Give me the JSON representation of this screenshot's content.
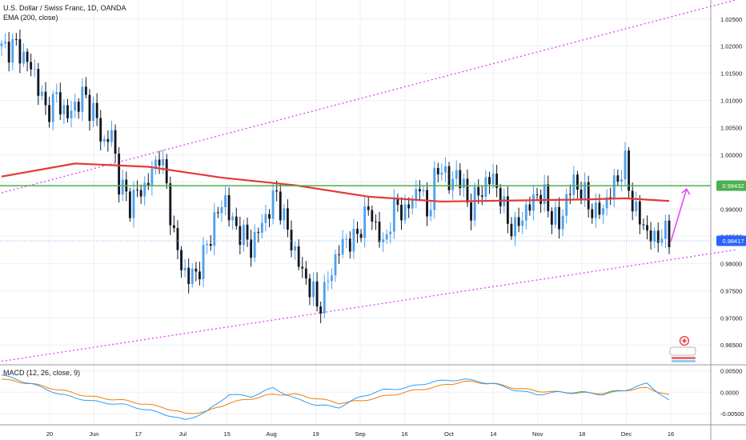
{
  "header": {
    "title": "U.S. Dollar / Swiss Franc, 1D, OANDA",
    "ema_label": "EMA (200, close)",
    "macd_label": "MACD (12, 26, close, 9)"
  },
  "colors": {
    "bull": "#4da1f0",
    "bear": "#131722",
    "ema": "#e53935",
    "horizontal": "#4caf50",
    "channel": "#e040fb",
    "arrow": "#e040fb",
    "macd": "#2f9df4",
    "signal": "#f57c00",
    "current_line": "#7cb9f4"
  },
  "price_axis": {
    "ticks": [
      "1.02500",
      "1.02000",
      "1.01500",
      "1.01000",
      "1.00500",
      "1.00000",
      "0.99500",
      "0.99000",
      "0.98500",
      "0.98000",
      "0.97500",
      "0.97000",
      "0.96500"
    ],
    "range": [
      0.9615,
      1.0285
    ]
  },
  "macd_axis": {
    "ticks": [
      "0.00500",
      "0.0000",
      "-0.00500"
    ],
    "range": [
      -0.0074,
      0.0062
    ]
  },
  "time_axis": {
    "labels": [
      "20",
      "Jun",
      "17",
      "Jul",
      "15",
      "Aug",
      "19",
      "Sep",
      "16",
      "Oct",
      "14",
      "Nov",
      "18",
      "Dec",
      "16"
    ]
  },
  "tags": {
    "horizontal_level": "0.99432",
    "last_price": "0.98417"
  },
  "chart_data": {
    "type": "candlestick",
    "symbol": "U.S. Dollar / Swiss Franc",
    "timeframe": "1D",
    "source": "OANDA",
    "indicators": [
      "EMA (200, close)",
      "MACD (12, 26, close, 9)"
    ],
    "close_path": [
      [
        0,
        1.0195
      ],
      [
        4,
        1.02
      ],
      [
        9,
        1.015
      ],
      [
        12,
        1.008
      ],
      [
        15,
        1.0105
      ],
      [
        18,
        1.007
      ],
      [
        22,
        1.011
      ],
      [
        25,
        1.008
      ],
      [
        28,
        1.002
      ],
      [
        30,
        1.004
      ],
      [
        32,
        0.995
      ],
      [
        35,
        0.991
      ],
      [
        37,
        0.993
      ],
      [
        39,
        0.994
      ],
      [
        41,
        0.9965
      ],
      [
        43,
        1.0005
      ],
      [
        45,
        0.994
      ],
      [
        47,
        0.985
      ],
      [
        49,
        0.9795
      ],
      [
        51,
        0.9775
      ],
      [
        53,
        0.978
      ],
      [
        56,
        0.983
      ],
      [
        58,
        0.988
      ],
      [
        61,
        0.992
      ],
      [
        63,
        0.987
      ],
      [
        65,
        0.986
      ],
      [
        68,
        0.983
      ],
      [
        70,
        0.986
      ],
      [
        73,
        0.99
      ],
      [
        75,
        0.993
      ],
      [
        77,
        0.988
      ],
      [
        79,
        0.984
      ],
      [
        81,
        0.98
      ],
      [
        83,
        0.977
      ],
      [
        85,
        0.9745
      ],
      [
        86,
        0.972
      ],
      [
        88,
        0.9745
      ],
      [
        90,
        0.979
      ],
      [
        92,
        0.9825
      ],
      [
        94,
        0.9845
      ],
      [
        96,
        0.984
      ],
      [
        98,
        0.987
      ],
      [
        100,
        0.99
      ],
      [
        102,
        0.987
      ],
      [
        104,
        0.983
      ],
      [
        106,
        0.988
      ],
      [
        108,
        0.991
      ],
      [
        110,
        0.989
      ],
      [
        112,
        0.992
      ],
      [
        114,
        0.9945
      ],
      [
        116,
        0.989
      ],
      [
        118,
        0.995
      ],
      [
        120,
        0.9985
      ],
      [
        122,
        0.994
      ],
      [
        124,
        0.997
      ],
      [
        126,
        0.9935
      ],
      [
        128,
        0.99
      ],
      [
        130,
        0.993
      ],
      [
        132,
        0.9945
      ],
      [
        134,
        0.996
      ],
      [
        136,
        0.992
      ],
      [
        138,
        0.988
      ],
      [
        140,
        0.986
      ],
      [
        142,
        0.989
      ],
      [
        144,
        0.9905
      ],
      [
        146,
        0.993
      ],
      [
        148,
        0.992
      ],
      [
        150,
        0.989
      ],
      [
        152,
        0.987
      ],
      [
        154,
        0.992
      ],
      [
        156,
        0.995
      ],
      [
        158,
        0.9935
      ],
      [
        160,
        0.991
      ],
      [
        162,
        0.989
      ],
      [
        164,
        0.9905
      ],
      [
        166,
        0.993
      ],
      [
        168,
        0.996
      ],
      [
        170,
        0.998
      ],
      [
        172,
        0.991
      ],
      [
        174,
        0.988
      ],
      [
        176,
        0.986
      ],
      [
        178,
        0.984
      ],
      [
        180,
        0.986
      ],
      [
        182,
        0.9842
      ]
    ],
    "ema_200": [
      [
        0,
        0.996
      ],
      [
        20,
        0.9984
      ],
      [
        40,
        0.9978
      ],
      [
        60,
        0.9958
      ],
      [
        80,
        0.9944
      ],
      [
        100,
        0.9923
      ],
      [
        120,
        0.9914
      ],
      [
        140,
        0.9916
      ],
      [
        160,
        0.9918
      ],
      [
        170,
        0.992
      ],
      [
        182,
        0.9915
      ]
    ],
    "horizontal_level": 0.99432,
    "last_price": 0.98417,
    "channel_upper": [
      [
        0,
        0.993
      ],
      [
        200,
        1.0285
      ]
    ],
    "channel_lower": [
      [
        0,
        0.962
      ],
      [
        200,
        0.9825
      ]
    ],
    "projection_arrow": {
      "from": [
        182,
        0.984
      ],
      "to": [
        185,
        0.994
      ]
    },
    "macd": [
      [
        0,
        0.004
      ],
      [
        8,
        0.002
      ],
      [
        16,
        -0.0005
      ],
      [
        24,
        -0.002
      ],
      [
        34,
        -0.003
      ],
      [
        44,
        -0.005
      ],
      [
        50,
        -0.0065
      ],
      [
        56,
        -0.0045
      ],
      [
        62,
        -0.0005
      ],
      [
        68,
        -0.001
      ],
      [
        74,
        0.001
      ],
      [
        80,
        -0.0015
      ],
      [
        86,
        -0.003
      ],
      [
        92,
        -0.0035
      ],
      [
        98,
        -0.001
      ],
      [
        104,
        0.0005
      ],
      [
        110,
        0.001
      ],
      [
        118,
        0.0025
      ],
      [
        126,
        0.003
      ],
      [
        134,
        0.002
      ],
      [
        140,
        0.0005
      ],
      [
        146,
        -0.0005
      ],
      [
        152,
        0.0
      ],
      [
        158,
        0.0
      ],
      [
        164,
        -0.0005
      ],
      [
        170,
        0.0005
      ],
      [
        176,
        0.002
      ],
      [
        182,
        -0.002
      ]
    ],
    "signal": [
      [
        0,
        0.003
      ],
      [
        8,
        0.002
      ],
      [
        16,
        0.0005
      ],
      [
        24,
        -0.001
      ],
      [
        34,
        -0.002
      ],
      [
        44,
        -0.0035
      ],
      [
        50,
        -0.005
      ],
      [
        56,
        -0.0045
      ],
      [
        62,
        -0.0025
      ],
      [
        68,
        -0.0015
      ],
      [
        74,
        -0.0005
      ],
      [
        80,
        -0.0005
      ],
      [
        86,
        -0.0015
      ],
      [
        92,
        -0.0025
      ],
      [
        98,
        -0.002
      ],
      [
        104,
        -0.001
      ],
      [
        110,
        0.0
      ],
      [
        118,
        0.0012
      ],
      [
        126,
        0.0025
      ],
      [
        134,
        0.002
      ],
      [
        140,
        0.001
      ],
      [
        146,
        0.0003
      ],
      [
        152,
        0.0
      ],
      [
        158,
        -0.0002
      ],
      [
        164,
        -0.0002
      ],
      [
        170,
        0.0005
      ],
      [
        176,
        0.001
      ],
      [
        182,
        -0.0007
      ]
    ]
  }
}
